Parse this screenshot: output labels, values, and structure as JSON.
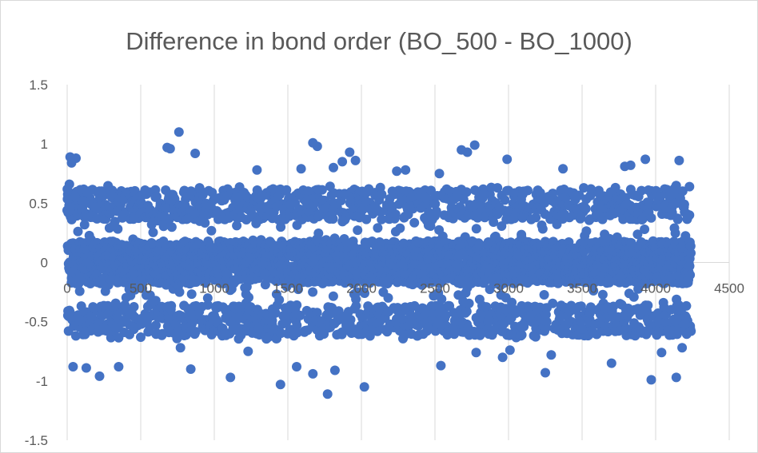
{
  "chart_data": {
    "type": "scatter",
    "title": "Difference in bond order (BO_500 - BO_1000)",
    "xlabel": "",
    "ylabel": "",
    "xlim": [
      0,
      4500
    ],
    "ylim": [
      -1.5,
      1.5
    ],
    "x_ticks": [
      0,
      500,
      1000,
      1500,
      2000,
      2500,
      3000,
      3500,
      4000,
      4500
    ],
    "y_ticks": [
      -1.5,
      -1,
      -0.5,
      0,
      0.5,
      1,
      1.5
    ],
    "x_tick_labels": [
      "0",
      "500",
      "1000",
      "1500",
      "2000",
      "2500",
      "3000",
      "3500",
      "4000",
      "4500"
    ],
    "y_tick_labels": [
      "-1.5",
      "-1",
      "-0.5",
      "0",
      "0.5",
      "1",
      "1.5"
    ],
    "grid": "vertical",
    "legend": "none",
    "marker_color": "#4472C4",
    "n_points_approx": 4230,
    "series": [
      {
        "points": [
          [
            20,
            0.89
          ],
          [
            30,
            0.84
          ],
          [
            60,
            0.88
          ],
          [
            55,
            0.55
          ],
          [
            15,
            0.66
          ],
          [
            110,
            0.52
          ],
          [
            40,
            -0.88
          ],
          [
            130,
            -0.89
          ],
          [
            220,
            -0.96
          ],
          [
            350,
            -0.88
          ],
          [
            500,
            -0.63
          ],
          [
            680,
            0.97
          ],
          [
            700,
            0.96
          ],
          [
            760,
            1.1
          ],
          [
            870,
            0.92
          ],
          [
            840,
            -0.9
          ],
          [
            770,
            -0.72
          ],
          [
            1110,
            -0.97
          ],
          [
            1230,
            -0.75
          ],
          [
            1290,
            0.78
          ],
          [
            1450,
            -1.03
          ],
          [
            1560,
            -0.88
          ],
          [
            1590,
            0.79
          ],
          [
            1670,
            1.01
          ],
          [
            1700,
            0.98
          ],
          [
            1670,
            -0.94
          ],
          [
            1770,
            -1.11
          ],
          [
            1810,
            0.8
          ],
          [
            1820,
            -0.91
          ],
          [
            1870,
            0.85
          ],
          [
            1920,
            0.93
          ],
          [
            1960,
            0.86
          ],
          [
            2020,
            -1.05
          ],
          [
            2240,
            0.77
          ],
          [
            2300,
            0.78
          ],
          [
            2530,
            0.75
          ],
          [
            2540,
            -0.87
          ],
          [
            2680,
            0.95
          ],
          [
            2720,
            0.93
          ],
          [
            2770,
            0.99
          ],
          [
            2780,
            -0.76
          ],
          [
            2960,
            -0.8
          ],
          [
            2990,
            0.87
          ],
          [
            3010,
            -0.74
          ],
          [
            3250,
            -0.93
          ],
          [
            3290,
            -0.78
          ],
          [
            3370,
            0.79
          ],
          [
            3700,
            -0.85
          ],
          [
            3790,
            0.81
          ],
          [
            3830,
            0.82
          ],
          [
            3930,
            0.87
          ],
          [
            3970,
            -0.99
          ],
          [
            4040,
            -0.76
          ],
          [
            4140,
            -0.97
          ],
          [
            4160,
            0.86
          ],
          [
            4180,
            -0.72
          ],
          [
            4230,
            0.64
          ],
          [
            4240,
            -0.58
          ],
          [
            3560,
            0.62
          ],
          [
            3100,
            0.6
          ],
          [
            2380,
            -0.62
          ],
          [
            900,
            0.63
          ],
          [
            1400,
            0.62
          ],
          [
            2050,
            0.62
          ],
          [
            300,
            0.57
          ],
          [
            600,
            0.55
          ],
          [
            1150,
            0.55
          ],
          [
            1850,
            0.58
          ],
          [
            2650,
            0.55
          ],
          [
            3450,
            0.56
          ],
          [
            4100,
            0.57
          ],
          [
            250,
            -0.55
          ],
          [
            750,
            -0.58
          ],
          [
            1300,
            -0.56
          ],
          [
            1900,
            -0.57
          ],
          [
            2450,
            -0.55
          ],
          [
            2900,
            -0.58
          ],
          [
            3500,
            -0.56
          ],
          [
            3900,
            -0.57
          ],
          [
            4200,
            -0.52
          ]
        ]
      }
    ]
  }
}
